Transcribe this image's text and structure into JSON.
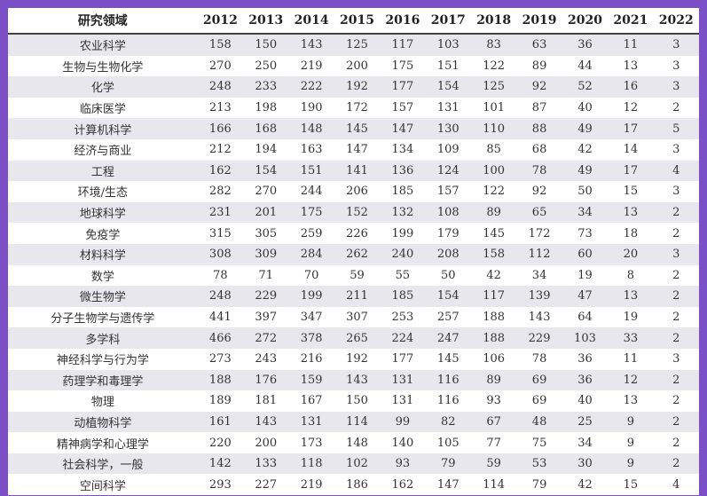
{
  "table": {
    "headers": [
      "研究领域",
      "2012",
      "2013",
      "2014",
      "2015",
      "2016",
      "2017",
      "2018",
      "2019",
      "2020",
      "2021",
      "2022"
    ],
    "rows": [
      [
        "农业科学",
        "158",
        "150",
        "143",
        "125",
        "117",
        "103",
        "83",
        "63",
        "36",
        "11",
        "3"
      ],
      [
        "生物与生物化学",
        "270",
        "250",
        "219",
        "200",
        "175",
        "151",
        "122",
        "89",
        "44",
        "13",
        "3"
      ],
      [
        "化学",
        "248",
        "233",
        "222",
        "192",
        "177",
        "154",
        "125",
        "92",
        "52",
        "16",
        "3"
      ],
      [
        "临床医学",
        "213",
        "198",
        "190",
        "172",
        "157",
        "131",
        "101",
        "87",
        "40",
        "12",
        "2"
      ],
      [
        "计算机科学",
        "166",
        "168",
        "148",
        "145",
        "147",
        "130",
        "110",
        "88",
        "49",
        "17",
        "5"
      ],
      [
        "经济与商业",
        "212",
        "194",
        "163",
        "147",
        "134",
        "109",
        "85",
        "68",
        "42",
        "14",
        "3"
      ],
      [
        "工程",
        "162",
        "154",
        "151",
        "141",
        "136",
        "124",
        "100",
        "78",
        "49",
        "17",
        "4"
      ],
      [
        "环境/生态",
        "282",
        "270",
        "244",
        "206",
        "185",
        "157",
        "122",
        "92",
        "50",
        "15",
        "3"
      ],
      [
        "地球科学",
        "231",
        "201",
        "175",
        "152",
        "132",
        "108",
        "89",
        "65",
        "34",
        "13",
        "2"
      ],
      [
        "免疫学",
        "315",
        "305",
        "259",
        "226",
        "199",
        "179",
        "145",
        "172",
        "73",
        "18",
        "2"
      ],
      [
        "材料科学",
        "308",
        "309",
        "284",
        "262",
        "240",
        "208",
        "158",
        "112",
        "60",
        "20",
        "3"
      ],
      [
        "数学",
        "78",
        "71",
        "70",
        "59",
        "55",
        "50",
        "42",
        "34",
        "19",
        "8",
        "2"
      ],
      [
        "微生物学",
        "248",
        "229",
        "199",
        "211",
        "185",
        "154",
        "117",
        "139",
        "47",
        "13",
        "2"
      ],
      [
        "分子生物学与遗传学",
        "441",
        "397",
        "347",
        "307",
        "253",
        "257",
        "188",
        "143",
        "64",
        "19",
        "2"
      ],
      [
        "多学科",
        "466",
        "272",
        "378",
        "265",
        "224",
        "247",
        "188",
        "229",
        "103",
        "33",
        "2"
      ],
      [
        "神经科学与行为学",
        "273",
        "243",
        "216",
        "192",
        "177",
        "145",
        "106",
        "78",
        "36",
        "11",
        "3"
      ],
      [
        "药理学和毒理学",
        "188",
        "176",
        "159",
        "143",
        "131",
        "116",
        "89",
        "69",
        "36",
        "12",
        "2"
      ],
      [
        "物理",
        "189",
        "181",
        "167",
        "150",
        "131",
        "116",
        "93",
        "69",
        "40",
        "13",
        "2"
      ],
      [
        "动植物科学",
        "161",
        "143",
        "131",
        "114",
        "99",
        "82",
        "67",
        "48",
        "25",
        "9",
        "2"
      ],
      [
        "精神病学和心理学",
        "220",
        "200",
        "173",
        "148",
        "140",
        "105",
        "77",
        "75",
        "34",
        "9",
        "2"
      ],
      [
        "社会科学，一般",
        "142",
        "133",
        "118",
        "102",
        "93",
        "79",
        "59",
        "53",
        "30",
        "9",
        "2"
      ],
      [
        "空间科学",
        "293",
        "227",
        "219",
        "186",
        "162",
        "147",
        "114",
        "79",
        "42",
        "15",
        "4"
      ]
    ]
  }
}
